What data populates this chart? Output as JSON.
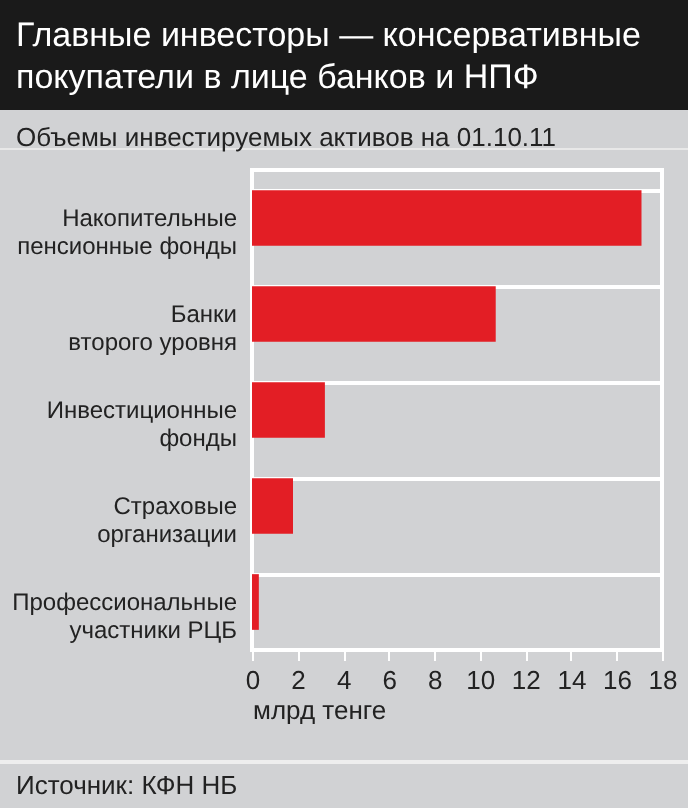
{
  "chart_data": {
    "type": "bar",
    "orientation": "horizontal",
    "title": "Главные инвесторы — консервативные покупатели в лице банков и НПФ",
    "subtitle": "Объемы инвестируемых активов на 01.10.11",
    "xlabel": "млрд тенге",
    "categories": [
      "Накопительные\nпенсионные фонды",
      "Банки\nвторого уровня",
      "Инвестиционные\nфонды",
      "Страховые\nорганизации",
      "Профессиональные\nучастники РЦБ"
    ],
    "values": [
      17.1,
      10.7,
      3.2,
      1.8,
      0.3
    ],
    "color": "#e31e25",
    "xlim": [
      0,
      18
    ],
    "xticks": [
      0,
      2,
      4,
      6,
      8,
      10,
      12,
      14,
      16,
      18
    ],
    "grid": "y",
    "annotations": [
      "Источник: КФН НБ"
    ]
  }
}
